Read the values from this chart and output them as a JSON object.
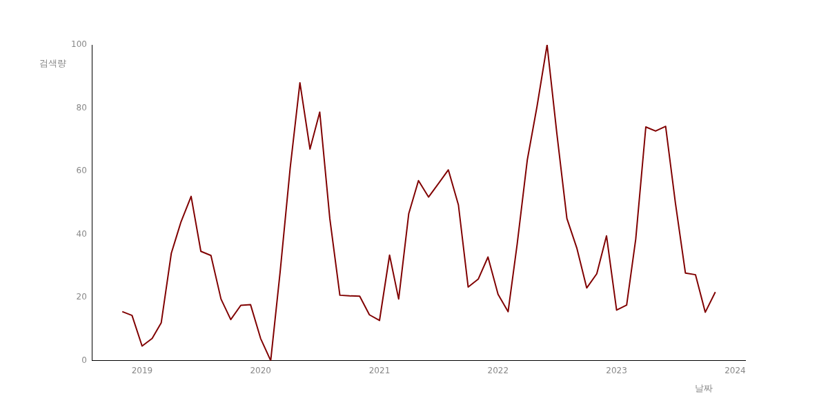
{
  "chart_data": {
    "type": "line",
    "xlabel": "날짜",
    "ylabel": "검색량",
    "x": [
      "2018-11",
      "2018-12",
      "2019-01",
      "2019-02",
      "2019-03",
      "2019-04",
      "2019-05",
      "2019-06",
      "2019-07",
      "2019-08",
      "2019-09",
      "2019-10",
      "2019-11",
      "2019-12",
      "2020-01",
      "2020-02",
      "2020-03",
      "2020-04",
      "2020-05",
      "2020-06",
      "2020-07",
      "2020-08",
      "2020-09",
      "2020-10",
      "2020-11",
      "2020-12",
      "2021-01",
      "2021-02",
      "2021-03",
      "2021-04",
      "2021-05",
      "2021-06",
      "2021-07",
      "2021-08",
      "2021-09",
      "2021-10",
      "2021-11",
      "2021-12",
      "2022-01",
      "2022-02",
      "2022-03",
      "2022-04",
      "2022-05",
      "2022-06",
      "2022-07",
      "2022-08",
      "2022-09",
      "2022-10",
      "2022-11",
      "2022-12",
      "2023-01",
      "2023-02",
      "2023-03",
      "2023-04",
      "2023-05",
      "2023-06",
      "2023-07",
      "2023-08",
      "2023-09",
      "2023-10",
      "2023-11"
    ],
    "series": [
      {
        "color": "#800000",
        "values": [
          15.5,
          14.3,
          4.6,
          7,
          12,
          34,
          44,
          52,
          34.6,
          33.3,
          19.5,
          13,
          17.5,
          17.7,
          7,
          0,
          28,
          61,
          88,
          67,
          78.7,
          45,
          20.7,
          20.5,
          20.4,
          14.5,
          12.7,
          33.4,
          19.5,
          46.5,
          57,
          51.8,
          56,
          60.4,
          49.3,
          23.3,
          25.8,
          32.8,
          21,
          15.5,
          37,
          63.5,
          80.5,
          100,
          72,
          45,
          35.5,
          23,
          27.5,
          39.5,
          16,
          17.6,
          38.5,
          74,
          72.7,
          74.2,
          50,
          27.7,
          27.2,
          15.3,
          21.7
        ]
      }
    ],
    "xlim": [
      "2018-08",
      "2024-02"
    ],
    "xticks": [
      "2019",
      "2020",
      "2021",
      "2022",
      "2023",
      "2024"
    ],
    "ylim": [
      0,
      100
    ],
    "yticks": [
      0,
      20,
      40,
      60,
      80,
      100
    ],
    "grid": false,
    "legend": false,
    "marker": "none",
    "line_style": "solid"
  }
}
